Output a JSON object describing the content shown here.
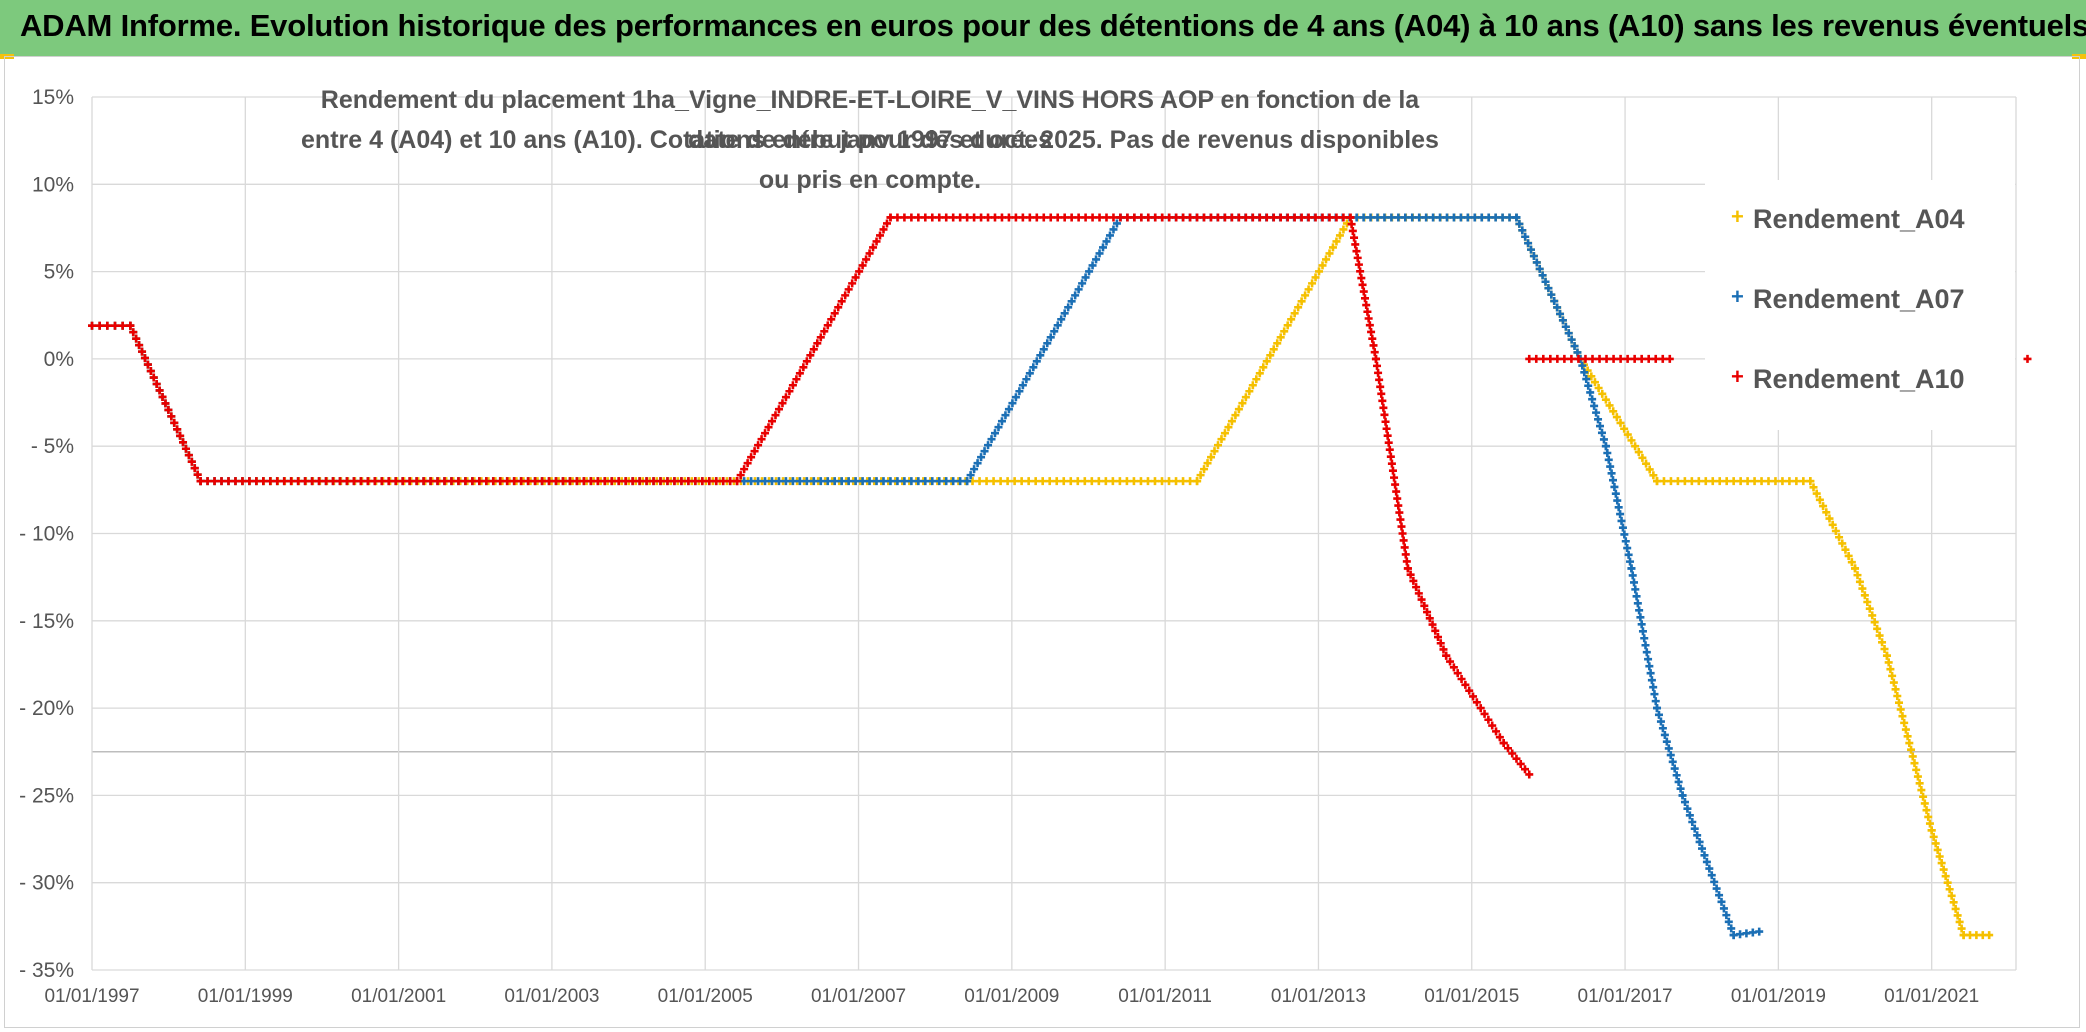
{
  "header": {
    "title": "ADAM Informe. Evolution historique des performances en euros pour des détentions de 4 ans (A04) à 10 ans (A10) sans les revenus éventuels"
  },
  "chart_data": {
    "type": "scatter",
    "title_line1": "Rendement du placement 1ha_Vigne_INDRE-ET-LOIRE_V_VINS HORS AOP en fonction de la date de début pour des durées",
    "title_line2": "entre 4 (A04) et 10 ans (A10). Cotations entre janv 1997 et oct. 2025. Pas de revenus disponibles ou pris en compte.",
    "xlabel": "",
    "ylabel": "",
    "x_range": [
      "01/01/1997",
      "01/01/2022"
    ],
    "ylim": [
      -35,
      15
    ],
    "y_ticks": [
      15,
      10,
      5,
      0,
      -5,
      -10,
      -15,
      -20,
      -25,
      -30,
      -35
    ],
    "y_tick_labels": [
      "15%",
      "10%",
      "5%",
      "0%",
      "- 5%",
      "- 10%",
      "- 15%",
      "- 20%",
      "- 25%",
      "- 30%",
      "- 35%"
    ],
    "x_tick_labels": [
      "01/01/1997",
      "01/01/1999",
      "01/01/2001",
      "01/01/2003",
      "01/01/2005",
      "01/01/2007",
      "01/01/2009",
      "01/01/2011",
      "01/01/2013",
      "01/01/2015",
      "01/01/2017",
      "01/01/2019",
      "01/01/2021"
    ],
    "grid": true,
    "legend_position": "right",
    "series": [
      {
        "name": "Rendement_A04",
        "color": "#f5c000",
        "points": [
          [
            "1997-01-01",
            1.9
          ],
          [
            "1997-07-01",
            1.9
          ],
          [
            "1998-06-01",
            -7.0
          ],
          [
            "2011-06-01",
            -7.0
          ],
          [
            "2013-06-01",
            8.1
          ],
          [
            "2015-08-01",
            8.1
          ],
          [
            "2016-06-01",
            0.0
          ],
          [
            "2017-06-01",
            -7.0
          ],
          [
            "2019-06-01",
            -7.0
          ],
          [
            "2020-01-01",
            -12.0
          ],
          [
            "2020-06-01",
            -17.0
          ],
          [
            "2021-01-01",
            -27.0
          ],
          [
            "2021-06-01",
            -33.0
          ],
          [
            "2021-10-01",
            -33.0
          ]
        ]
      },
      {
        "name": "Rendement_A07",
        "color": "#1b6fb5",
        "points": [
          [
            "1997-01-01",
            1.9
          ],
          [
            "1997-07-01",
            1.9
          ],
          [
            "1998-06-01",
            -7.0
          ],
          [
            "2008-06-01",
            -7.0
          ],
          [
            "2010-06-01",
            8.1
          ],
          [
            "2015-08-01",
            8.1
          ],
          [
            "2016-06-01",
            0.0
          ],
          [
            "2016-10-01",
            -5.0
          ],
          [
            "2017-02-01",
            -12.0
          ],
          [
            "2017-06-01",
            -20.0
          ],
          [
            "2017-10-01",
            -25.0
          ],
          [
            "2018-06-01",
            -33.0
          ],
          [
            "2018-10-01",
            -32.8
          ]
        ]
      },
      {
        "name": "Rendement_A10",
        "color": "#e80000",
        "points": [
          [
            "1997-01-01",
            1.9
          ],
          [
            "1997-07-01",
            1.9
          ],
          [
            "1998-06-01",
            -7.0
          ],
          [
            "2005-06-01",
            -7.0
          ],
          [
            "2007-06-01",
            8.1
          ],
          [
            "2013-06-01",
            8.1
          ],
          [
            "2013-10-01",
            0.0
          ],
          [
            "2014-03-01",
            -12.0
          ],
          [
            "2014-09-01",
            -17.0
          ],
          [
            "2015-06-01",
            -22.0
          ],
          [
            "2015-10-01",
            -23.8
          ]
        ],
        "extra_points": [
          [
            "2015-10-01",
            0.0
          ],
          [
            "2017-08-01",
            0.0
          ],
          [
            "2022-04-01",
            0.0
          ]
        ]
      }
    ]
  }
}
